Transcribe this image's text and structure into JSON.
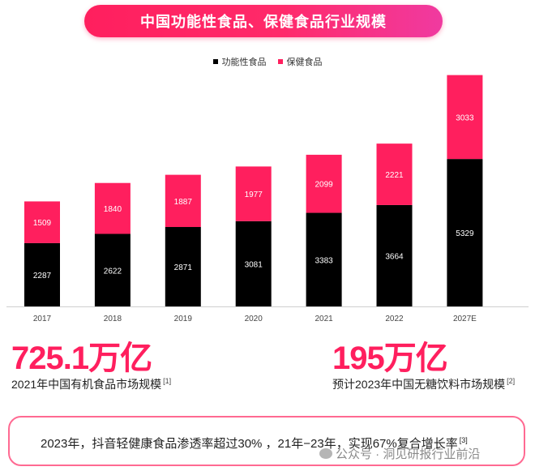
{
  "header": {
    "title": "中国功能性食品、保健食品行业规模"
  },
  "legend": [
    {
      "label": "功能性食品",
      "color": "#000000"
    },
    {
      "label": "保健食品",
      "color": "#ff1f5e"
    }
  ],
  "chart_data": {
    "type": "bar",
    "stacked": true,
    "categories": [
      "2017",
      "2018",
      "2019",
      "2020",
      "2021",
      "2022",
      "2027E"
    ],
    "series": [
      {
        "name": "功能性食品",
        "color": "#000000",
        "values": [
          2287,
          2622,
          2871,
          3081,
          3383,
          3664,
          5329
        ]
      },
      {
        "name": "保健食品",
        "color": "#ff1f5e",
        "values": [
          1509,
          1840,
          1887,
          1977,
          2099,
          2221,
          3033
        ]
      }
    ],
    "title": "中国功能性食品、保健食品行业规模",
    "xlabel": "",
    "ylabel": "",
    "legend_position": "top-center",
    "grid": false
  },
  "stats": {
    "left": {
      "value": "725.1万亿",
      "caption": "2021年中国有机食品市场规模",
      "ref": "[1]"
    },
    "right": {
      "value": "195万亿",
      "caption": "预计2023年中国无糖饮料市场规模",
      "ref": "[2]"
    }
  },
  "footer": {
    "text": "2023年，抖音轻健康食品渗透率超过30% ，21年−23年，实现67%复合增长率",
    "ref": "[3]"
  },
  "watermark": {
    "text": "公众号 · 洞见研报行业前沿",
    "icon": "wechat-icon"
  }
}
